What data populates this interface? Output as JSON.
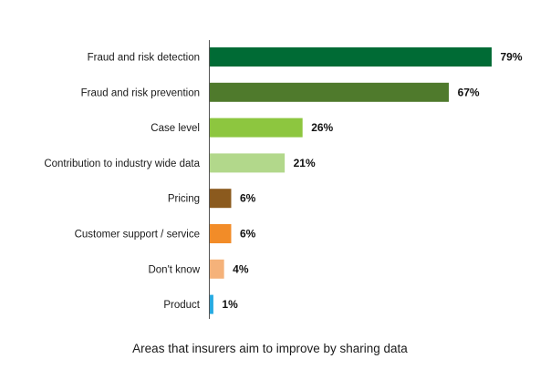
{
  "chart_data": {
    "type": "bar",
    "orientation": "horizontal",
    "categories": [
      "Fraud and risk detection",
      "Fraud and risk prevention",
      "Case level",
      "Contribution to industry wide data",
      "Pricing",
      "Customer support / service",
      "Don't know",
      "Product"
    ],
    "values": [
      79,
      67,
      26,
      21,
      6,
      6,
      4,
      1
    ],
    "value_labels": [
      "79%",
      "67%",
      "26%",
      "21%",
      "6%",
      "6%",
      "4%",
      "1%"
    ],
    "colors": [
      "#006b35",
      "#4f7a2c",
      "#8dc63f",
      "#b2d88b",
      "#8b5a1e",
      "#f28c28",
      "#f5b27a",
      "#27aae1"
    ],
    "title": "",
    "xlabel": "Areas that insurers aim to improve by sharing data",
    "ylabel": "",
    "xlim": [
      0,
      79
    ],
    "grid": false,
    "legend": "none"
  }
}
